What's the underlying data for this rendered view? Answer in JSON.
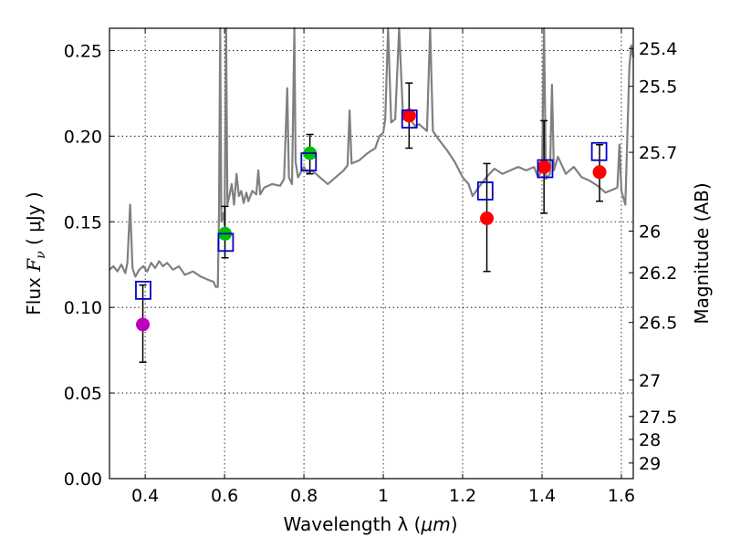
{
  "chart_data": {
    "type": "scatter",
    "title": "",
    "xlabel_prefix": "Wavelength  λ (",
    "xlabel_unit": "μm",
    "xlabel_suffix": ")",
    "ylabel_prefix": "Flux  ",
    "ylabel_symbol": "F",
    "ylabel_sub": "ν",
    "ylabel_unit": "  ( μJy )",
    "y2label": "Magnitude (AB)",
    "xlim": [
      0.31,
      1.63
    ],
    "ylim": [
      0.0,
      0.263
    ],
    "grid": true,
    "x_ticks": [
      0.4,
      0.6,
      0.8,
      1.0,
      1.2,
      1.4,
      1.6
    ],
    "x_tick_labels": [
      "0.4",
      "0.6",
      "0.8",
      "1",
      "1.2",
      "1.4",
      "1.6"
    ],
    "y_ticks": [
      0.0,
      0.05,
      0.1,
      0.15,
      0.2,
      0.25
    ],
    "y_tick_labels": [
      "0.00",
      "0.05",
      "0.10",
      "0.15",
      "0.20",
      "0.25"
    ],
    "mag_ticks": [
      25.4,
      25.5,
      25.7,
      26,
      26.2,
      26.5,
      27,
      27.5,
      28,
      29
    ],
    "mag_tick_labels": [
      "25.4",
      "25.5",
      "25.7",
      "26",
      "26.2",
      "26.5",
      "27",
      "27.5",
      "28",
      "29"
    ],
    "series": [
      {
        "name": "model spectrum",
        "style": "line",
        "color": "#808080",
        "points": [
          [
            0.31,
            0.122
          ],
          [
            0.32,
            0.124
          ],
          [
            0.33,
            0.121
          ],
          [
            0.34,
            0.125
          ],
          [
            0.35,
            0.12
          ],
          [
            0.355,
            0.126
          ],
          [
            0.362,
            0.16
          ],
          [
            0.368,
            0.123
          ],
          [
            0.375,
            0.118
          ],
          [
            0.385,
            0.122
          ],
          [
            0.395,
            0.124
          ],
          [
            0.405,
            0.121
          ],
          [
            0.415,
            0.126
          ],
          [
            0.425,
            0.123
          ],
          [
            0.435,
            0.127
          ],
          [
            0.445,
            0.124
          ],
          [
            0.455,
            0.126
          ],
          [
            0.47,
            0.122
          ],
          [
            0.485,
            0.124
          ],
          [
            0.5,
            0.119
          ],
          [
            0.52,
            0.121
          ],
          [
            0.54,
            0.118
          ],
          [
            0.56,
            0.116
          ],
          [
            0.572,
            0.115
          ],
          [
            0.578,
            0.112
          ],
          [
            0.583,
            0.112
          ],
          [
            0.586,
            0.155
          ],
          [
            0.589,
            0.263
          ],
          [
            0.592,
            0.15
          ],
          [
            0.596,
            0.155
          ],
          [
            0.6,
            0.148
          ],
          [
            0.604,
            0.263
          ],
          [
            0.607,
            0.16
          ],
          [
            0.612,
            0.165
          ],
          [
            0.618,
            0.172
          ],
          [
            0.624,
            0.16
          ],
          [
            0.63,
            0.178
          ],
          [
            0.636,
            0.165
          ],
          [
            0.642,
            0.168
          ],
          [
            0.648,
            0.161
          ],
          [
            0.655,
            0.167
          ],
          [
            0.66,
            0.162
          ],
          [
            0.67,
            0.168
          ],
          [
            0.68,
            0.166
          ],
          [
            0.685,
            0.18
          ],
          [
            0.69,
            0.166
          ],
          [
            0.7,
            0.17
          ],
          [
            0.72,
            0.172
          ],
          [
            0.74,
            0.171
          ],
          [
            0.75,
            0.175
          ],
          [
            0.758,
            0.228
          ],
          [
            0.762,
            0.176
          ],
          [
            0.77,
            0.172
          ],
          [
            0.776,
            0.263
          ],
          [
            0.779,
            0.185
          ],
          [
            0.785,
            0.176
          ],
          [
            0.8,
            0.182
          ],
          [
            0.81,
            0.178
          ],
          [
            0.82,
            0.18
          ],
          [
            0.84,
            0.176
          ],
          [
            0.86,
            0.172
          ],
          [
            0.88,
            0.176
          ],
          [
            0.9,
            0.18
          ],
          [
            0.91,
            0.183
          ],
          [
            0.915,
            0.215
          ],
          [
            0.92,
            0.184
          ],
          [
            0.94,
            0.186
          ],
          [
            0.96,
            0.19
          ],
          [
            0.98,
            0.193
          ],
          [
            0.99,
            0.2
          ],
          [
            1.0,
            0.202
          ],
          [
            1.005,
            0.21
          ],
          [
            1.012,
            0.263
          ],
          [
            1.02,
            0.208
          ],
          [
            1.03,
            0.21
          ],
          [
            1.04,
            0.263
          ],
          [
            1.05,
            0.21
          ],
          [
            1.06,
            0.213
          ],
          [
            1.07,
            0.209
          ],
          [
            1.08,
            0.206
          ],
          [
            1.09,
            0.207
          ],
          [
            1.1,
            0.205
          ],
          [
            1.11,
            0.203
          ],
          [
            1.118,
            0.263
          ],
          [
            1.125,
            0.203
          ],
          [
            1.14,
            0.198
          ],
          [
            1.16,
            0.192
          ],
          [
            1.18,
            0.185
          ],
          [
            1.2,
            0.176
          ],
          [
            1.215,
            0.172
          ],
          [
            1.225,
            0.165
          ],
          [
            1.24,
            0.17
          ],
          [
            1.26,
            0.176
          ],
          [
            1.28,
            0.181
          ],
          [
            1.3,
            0.178
          ],
          [
            1.32,
            0.18
          ],
          [
            1.34,
            0.182
          ],
          [
            1.36,
            0.18
          ],
          [
            1.38,
            0.182
          ],
          [
            1.39,
            0.176
          ],
          [
            1.4,
            0.18
          ],
          [
            1.405,
            0.263
          ],
          [
            1.41,
            0.175
          ],
          [
            1.42,
            0.178
          ],
          [
            1.425,
            0.23
          ],
          [
            1.43,
            0.18
          ],
          [
            1.44,
            0.188
          ],
          [
            1.46,
            0.178
          ],
          [
            1.48,
            0.182
          ],
          [
            1.5,
            0.176
          ],
          [
            1.52,
            0.174
          ],
          [
            1.54,
            0.171
          ],
          [
            1.56,
            0.167
          ],
          [
            1.58,
            0.169
          ],
          [
            1.59,
            0.17
          ],
          [
            1.595,
            0.195
          ],
          [
            1.6,
            0.168
          ],
          [
            1.61,
            0.16
          ],
          [
            1.615,
            0.2
          ],
          [
            1.62,
            0.24
          ],
          [
            1.625,
            0.253
          ],
          [
            1.63,
            0.246
          ]
        ]
      },
      {
        "name": "model photometry",
        "style": "open-square",
        "color": "#0000cc",
        "x": [
          0.395,
          0.603,
          0.812,
          1.066,
          1.257,
          1.408,
          1.544
        ],
        "y": [
          0.11,
          0.138,
          0.185,
          0.21,
          0.168,
          0.181,
          0.191
        ]
      },
      {
        "name": "observed photometry",
        "style": "filled-circle",
        "x": [
          0.394,
          0.601,
          0.815,
          1.065,
          1.261,
          1.405,
          1.545
        ],
        "y": [
          0.09,
          0.143,
          0.19,
          0.212,
          0.152,
          0.182,
          0.179
        ],
        "colors": [
          "#bf00bf",
          "#00bf00",
          "#00bf00",
          "#ff0000",
          "#ff0000",
          "#ff0000",
          "#ff0000"
        ],
        "yerr_low": [
          0.068,
          0.129,
          0.178,
          0.193,
          0.121,
          0.155,
          0.162
        ],
        "yerr_high": [
          0.113,
          0.159,
          0.201,
          0.231,
          0.184,
          0.209,
          0.195
        ]
      }
    ]
  }
}
